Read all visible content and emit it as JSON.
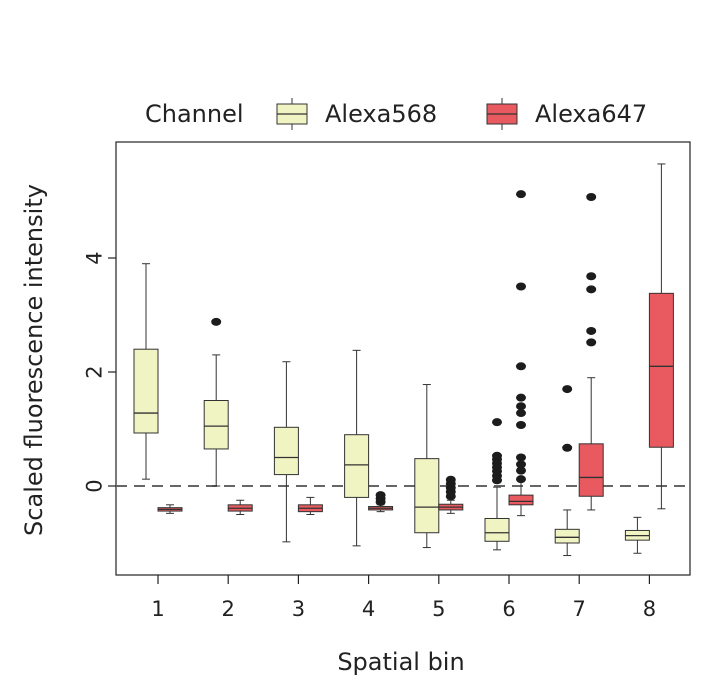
{
  "chart_data": {
    "type": "boxplot",
    "xlabel": "Spatial bin",
    "ylabel": "Scaled fluorescence intensity",
    "categories": [
      "1",
      "2",
      "3",
      "4",
      "5",
      "6",
      "7",
      "8"
    ],
    "yticks": [
      0,
      2,
      4
    ],
    "ytick_labels": [
      "0",
      "2",
      "4"
    ],
    "ylim": [
      -1.55,
      5.75
    ],
    "reference_line": {
      "y": 0,
      "style": "dashed"
    },
    "legend": {
      "title": "Channel",
      "position": "top"
    },
    "series": [
      {
        "name": "Alexa568",
        "color": "#f0f3c2",
        "boxes": [
          {
            "category": "1",
            "whisker_low": 0.12,
            "q1": 0.93,
            "median": 1.28,
            "q3": 2.4,
            "whisker_high": 3.9,
            "outliers": []
          },
          {
            "category": "2",
            "whisker_low": 0.0,
            "q1": 0.65,
            "median": 1.05,
            "q3": 1.5,
            "whisker_high": 2.3,
            "outliers": [
              2.88
            ]
          },
          {
            "category": "3",
            "whisker_low": -0.98,
            "q1": 0.2,
            "median": 0.5,
            "q3": 1.03,
            "whisker_high": 2.18,
            "outliers": []
          },
          {
            "category": "4",
            "whisker_low": -1.05,
            "q1": -0.2,
            "median": 0.37,
            "q3": 0.9,
            "whisker_high": 2.38,
            "outliers": []
          },
          {
            "category": "5",
            "whisker_low": -1.08,
            "q1": -0.82,
            "median": -0.37,
            "q3": 0.48,
            "whisker_high": 1.78,
            "outliers": []
          },
          {
            "category": "6",
            "whisker_low": -1.12,
            "q1": -0.97,
            "median": -0.82,
            "q3": -0.57,
            "whisker_high": -0.02,
            "outliers": [
              0.1,
              0.18,
              0.26,
              0.33,
              0.4,
              0.47,
              0.53,
              1.12
            ]
          },
          {
            "category": "7",
            "whisker_low": -1.22,
            "q1": -1.0,
            "median": -0.9,
            "q3": -0.76,
            "whisker_high": -0.42,
            "outliers": [
              0.67,
              1.7
            ]
          },
          {
            "category": "8",
            "whisker_low": -1.18,
            "q1": -0.95,
            "median": -0.87,
            "q3": -0.78,
            "whisker_high": -0.55,
            "outliers": []
          }
        ]
      },
      {
        "name": "Alexa647",
        "color": "#e85a5f",
        "boxes": [
          {
            "category": "1",
            "whisker_low": -0.48,
            "q1": -0.44,
            "median": -0.41,
            "q3": -0.38,
            "whisker_high": -0.33,
            "outliers": []
          },
          {
            "category": "2",
            "whisker_low": -0.5,
            "q1": -0.44,
            "median": -0.39,
            "q3": -0.33,
            "whisker_high": -0.25,
            "outliers": []
          },
          {
            "category": "3",
            "whisker_low": -0.5,
            "q1": -0.45,
            "median": -0.39,
            "q3": -0.33,
            "whisker_high": -0.2,
            "outliers": []
          },
          {
            "category": "4",
            "whisker_low": -0.45,
            "q1": -0.42,
            "median": -0.39,
            "q3": -0.36,
            "whisker_high": -0.33,
            "outliers": [
              -0.28,
              -0.22,
              -0.16
            ]
          },
          {
            "category": "5",
            "whisker_low": -0.48,
            "q1": -0.42,
            "median": -0.37,
            "q3": -0.32,
            "whisker_high": -0.25,
            "outliers": [
              -0.18,
              -0.1,
              -0.03,
              0.04,
              0.11
            ]
          },
          {
            "category": "6",
            "whisker_low": -0.52,
            "q1": -0.33,
            "median": -0.27,
            "q3": -0.16,
            "whisker_high": 0.1,
            "outliers": [
              0.12,
              0.27,
              0.38,
              0.5,
              1.07,
              1.28,
              1.4,
              1.55,
              2.1,
              3.5,
              5.12
            ]
          },
          {
            "category": "7",
            "whisker_low": -0.42,
            "q1": -0.18,
            "median": 0.15,
            "q3": 0.74,
            "whisker_high": 1.9,
            "outliers": [
              2.52,
              2.72,
              3.45,
              3.68,
              5.07
            ]
          },
          {
            "category": "8",
            "whisker_low": -0.4,
            "q1": 0.68,
            "median": 2.1,
            "q3": 3.38,
            "whisker_high": 5.65,
            "outliers": []
          }
        ]
      }
    ]
  }
}
